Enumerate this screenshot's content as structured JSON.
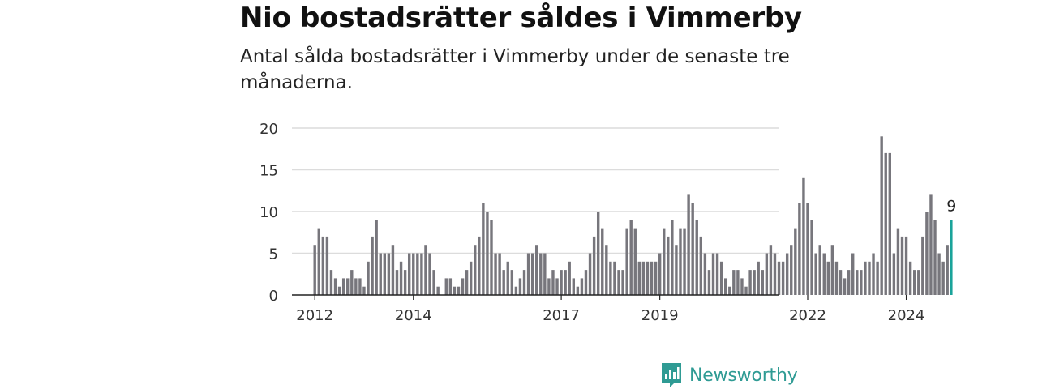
{
  "title": "Nio bostadsrätter såldes i Vimmerby",
  "subtitle": "Antal sålda bostadsrätter i Vimmerby under de senaste tre månaderna.",
  "brand": {
    "name": "Newsworthy",
    "icon": "newsworthy-logo-icon",
    "color": "#2f9b94"
  },
  "colors": {
    "bar": "#77767c",
    "highlight": "#1aa39a",
    "grid": "#dcdcdc",
    "axis": "#222222"
  },
  "chart_data": {
    "type": "bar",
    "ylim": [
      0,
      20
    ],
    "yticks": [
      0,
      5,
      10,
      15,
      20
    ],
    "grid": true,
    "xticks": [
      "2012",
      "2014",
      "2017",
      "2019",
      "2022",
      "2024"
    ],
    "start": "2012-01",
    "values": [
      6,
      8,
      7,
      7,
      3,
      2,
      1,
      2,
      2,
      3,
      2,
      2,
      1,
      4,
      7,
      9,
      5,
      5,
      5,
      6,
      3,
      4,
      3,
      5,
      5,
      5,
      5,
      6,
      5,
      3,
      1,
      0,
      2,
      2,
      1,
      1,
      2,
      3,
      4,
      6,
      7,
      11,
      10,
      9,
      5,
      5,
      3,
      4,
      3,
      1,
      2,
      3,
      5,
      5,
      6,
      5,
      5,
      2,
      3,
      2,
      3,
      3,
      4,
      2,
      1,
      2,
      3,
      5,
      7,
      10,
      8,
      6,
      4,
      4,
      3,
      3,
      8,
      9,
      8,
      4,
      4,
      4,
      4,
      4,
      5,
      8,
      7,
      9,
      6,
      8,
      8,
      12,
      11,
      9,
      7,
      5,
      3,
      5,
      5,
      4,
      2,
      1,
      3,
      3,
      2,
      1,
      3,
      3,
      4,
      3,
      5,
      6,
      5,
      4,
      4,
      5,
      6,
      8,
      11,
      14,
      11,
      9,
      5,
      6,
      5,
      4,
      6,
      4,
      3,
      2,
      3,
      5,
      3,
      3,
      4,
      4,
      5,
      4,
      19,
      17,
      17,
      5,
      8,
      7,
      7,
      4,
      3,
      3,
      7,
      10,
      12,
      9,
      5,
      4,
      6,
      9
    ],
    "highlight": {
      "value": 9,
      "label": "9"
    }
  }
}
